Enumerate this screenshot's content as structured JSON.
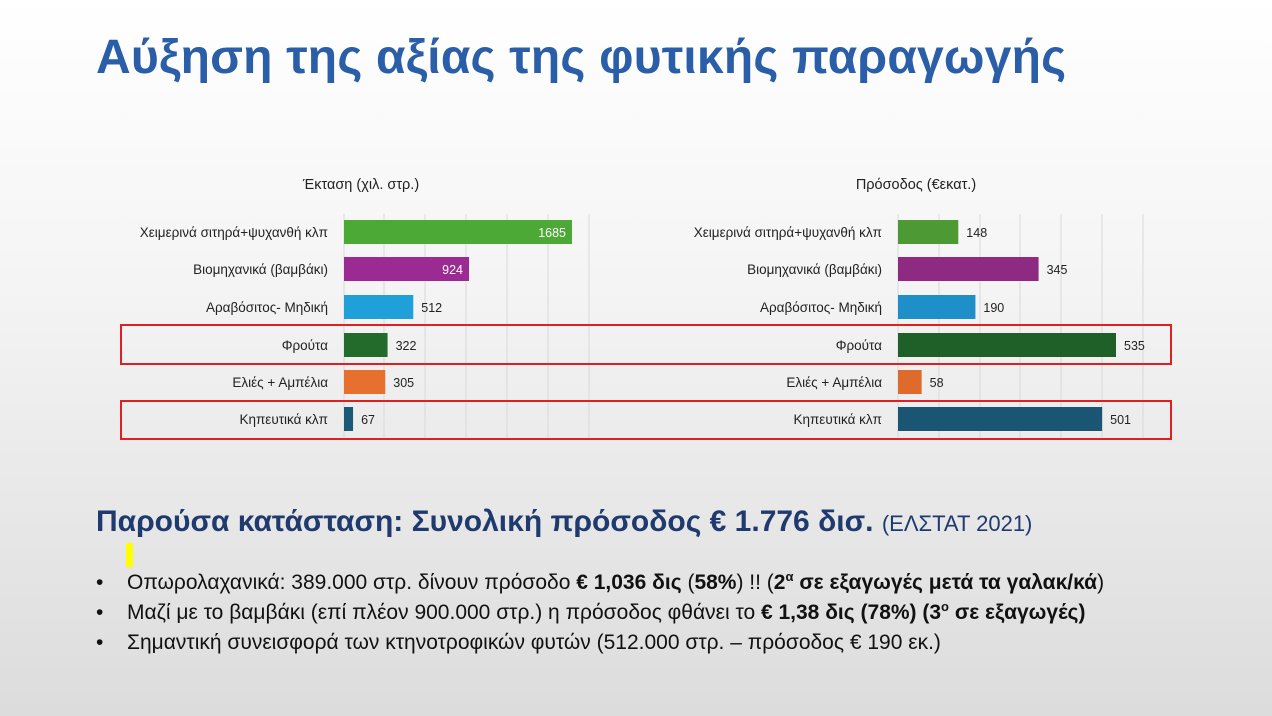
{
  "page_title": "Αύξηση της αξίας της φυτικής παραγωγής",
  "colors": {
    "title": "#2a5ea8",
    "heading": "#1f3a6e",
    "highlight_box": "#e02020",
    "highlight_marker": "#ffff00"
  },
  "chart_data": [
    {
      "type": "bar",
      "orientation": "horizontal",
      "title": "Έκταση (χιλ. στρ.)",
      "categories": [
        "Χειμερινά σιτηρά+ψυχανθή κλπ",
        "Βιομηχανικά (βαμβάκι)",
        "Αραβόσιτος- Μηδική",
        "Φρούτα",
        "Ελιές + Αμπέλια",
        "Κηπευτικά κλπ"
      ],
      "values": [
        1685,
        924,
        512,
        322,
        305,
        67
      ],
      "colors": [
        "#4ca935",
        "#9b2a92",
        "#1fa0d8",
        "#236b2a",
        "#e8702e",
        "#1b5a77"
      ],
      "label_inside": [
        true,
        true,
        false,
        false,
        false,
        false
      ],
      "xlim": [
        0,
        1685
      ],
      "grid": true,
      "highlighted": [
        "Φρούτα",
        "Κηπευτικά κλπ"
      ]
    },
    {
      "type": "bar",
      "orientation": "horizontal",
      "title": "Πρόσοδος (€εκατ.)",
      "categories": [
        "Χειμερινά σιτηρά+ψυχανθή κλπ",
        "Βιομηχανικά (βαμβάκι)",
        "Αραβόσιτος- Μηδική",
        "Φρούτα",
        "Ελιές + Αμπέλια",
        "Κηπευτικά κλπ"
      ],
      "values": [
        148,
        345,
        190,
        535,
        58,
        501
      ],
      "colors": [
        "#4d9a34",
        "#8e2a82",
        "#1e8fc8",
        "#1f6028",
        "#de6a2c",
        "#1a5573"
      ],
      "label_inside": [
        false,
        false,
        false,
        false,
        false,
        false
      ],
      "xlim": [
        0,
        535
      ],
      "grid": true,
      "highlighted": [
        "Φρούτα",
        "Κηπευτικά κλπ"
      ]
    }
  ],
  "summary": {
    "heading": "Παρούσα κατάσταση: Συνολική πρόσοδος € 1.776 δισ.",
    "source": "(ΕΛΣΤΑΤ 2021)",
    "bullets": [
      {
        "parts": [
          {
            "text": "Οπωρολαχανικά: 389.000 στρ. δίνουν πρόσοδο ",
            "bold": false
          },
          {
            "text": "€ 1,036 δις",
            "bold": true
          },
          {
            "text": " (",
            "bold": false
          },
          {
            "text": "58%",
            "bold": true
          },
          {
            "text": ") !!  (",
            "bold": false
          },
          {
            "text": "2",
            "bold": true
          },
          {
            "text": "α",
            "bold": true,
            "sup": true
          },
          {
            "text": " σε εξαγωγές μετά τα γαλακ/κά",
            "bold": true
          },
          {
            "text": ")",
            "bold": false
          }
        ]
      },
      {
        "parts": [
          {
            "text": "Μαζί με το βαμβάκι (επί πλέον 900.000 στρ.) η πρόσοδος φθάνει το ",
            "bold": false
          },
          {
            "text": "€ 1,38 δις",
            "bold": true
          },
          {
            "text": " (78%) (3",
            "bold": true
          },
          {
            "text": "ο",
            "bold": true,
            "sup": true
          },
          {
            "text": " σε εξαγωγές)",
            "bold": true
          }
        ]
      },
      {
        "parts": [
          {
            "text": "Σημαντική συνεισφορά των κτηνοτροφικών φυτών (512.000 στρ. – πρόσοδος € 190 εκ.)",
            "bold": false
          }
        ]
      }
    ]
  }
}
